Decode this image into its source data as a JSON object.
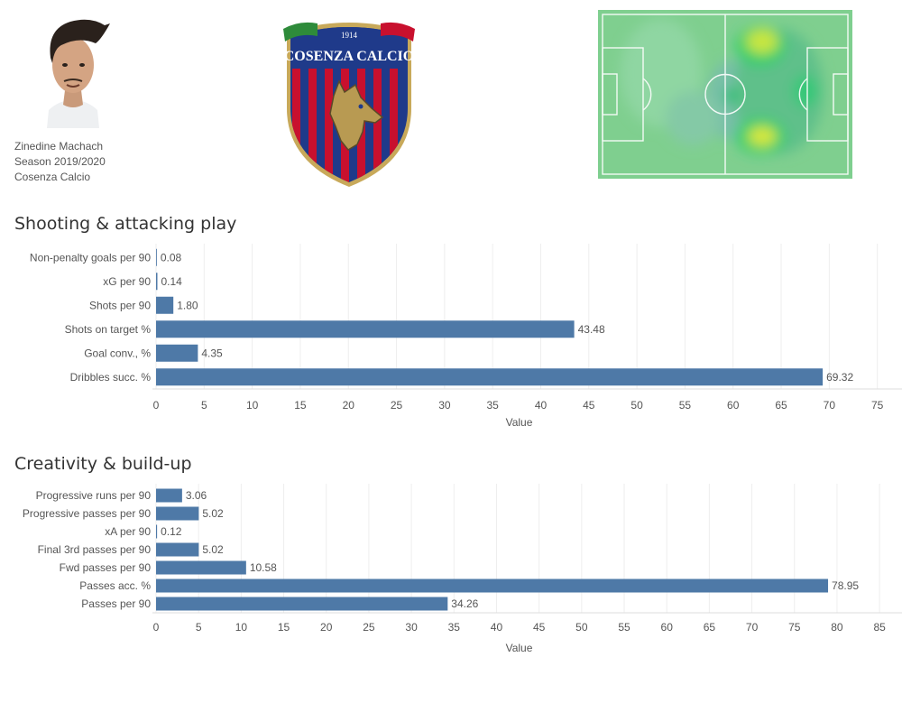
{
  "player": {
    "name": "Zinedine Machach",
    "season": "Season 2019/2020",
    "team": "Cosenza Calcio"
  },
  "crest": {
    "club_name": "COSENZA CALCIO",
    "founded": "1914",
    "colors": {
      "blue": "#1f3a8a",
      "red": "#c8102e",
      "gold": "#c8a95a",
      "green": "#2e8b3a"
    }
  },
  "colors": {
    "bar": "#4e79a7",
    "grid": "#eeeeee",
    "pitch": "#7fcf8f"
  },
  "chart_data": [
    {
      "type": "bar",
      "orientation": "horizontal",
      "title": "Shooting & attacking play",
      "categories": [
        "Non-penalty goals per 90",
        "xG per 90",
        "Shots per 90",
        "Shots on target %",
        "Goal conv., %",
        "Dribbles succ. %"
      ],
      "values": [
        0.08,
        0.14,
        1.8,
        43.48,
        4.35,
        69.32
      ],
      "value_labels": [
        "0.08",
        "0.14",
        "1.80",
        "43.48",
        "4.35",
        "69.32"
      ],
      "xlabel": "Value",
      "xlim": [
        0,
        77
      ],
      "ticks": [
        0,
        5,
        10,
        15,
        20,
        25,
        30,
        35,
        40,
        45,
        50,
        55,
        60,
        65,
        70,
        75
      ],
      "grid": true
    },
    {
      "type": "bar",
      "orientation": "horizontal",
      "title": "Creativity & build-up",
      "categories": [
        "Progressive runs per 90",
        "Progressive passes per 90",
        "xA per 90",
        "Final 3rd passes per 90",
        "Fwd passes per 90",
        "Passes acc. %",
        "Passes per 90"
      ],
      "values": [
        3.06,
        5.02,
        0.12,
        5.02,
        10.58,
        78.95,
        34.26
      ],
      "value_labels": [
        "3.06",
        "5.02",
        "0.12",
        "5.02",
        "10.58",
        "78.95",
        "34.26"
      ],
      "xlabel": "Value",
      "xlim": [
        0,
        87
      ],
      "ticks": [
        0,
        5,
        10,
        15,
        20,
        25,
        30,
        35,
        40,
        45,
        50,
        55,
        60,
        65,
        70,
        75,
        80,
        85
      ],
      "grid": true
    }
  ]
}
